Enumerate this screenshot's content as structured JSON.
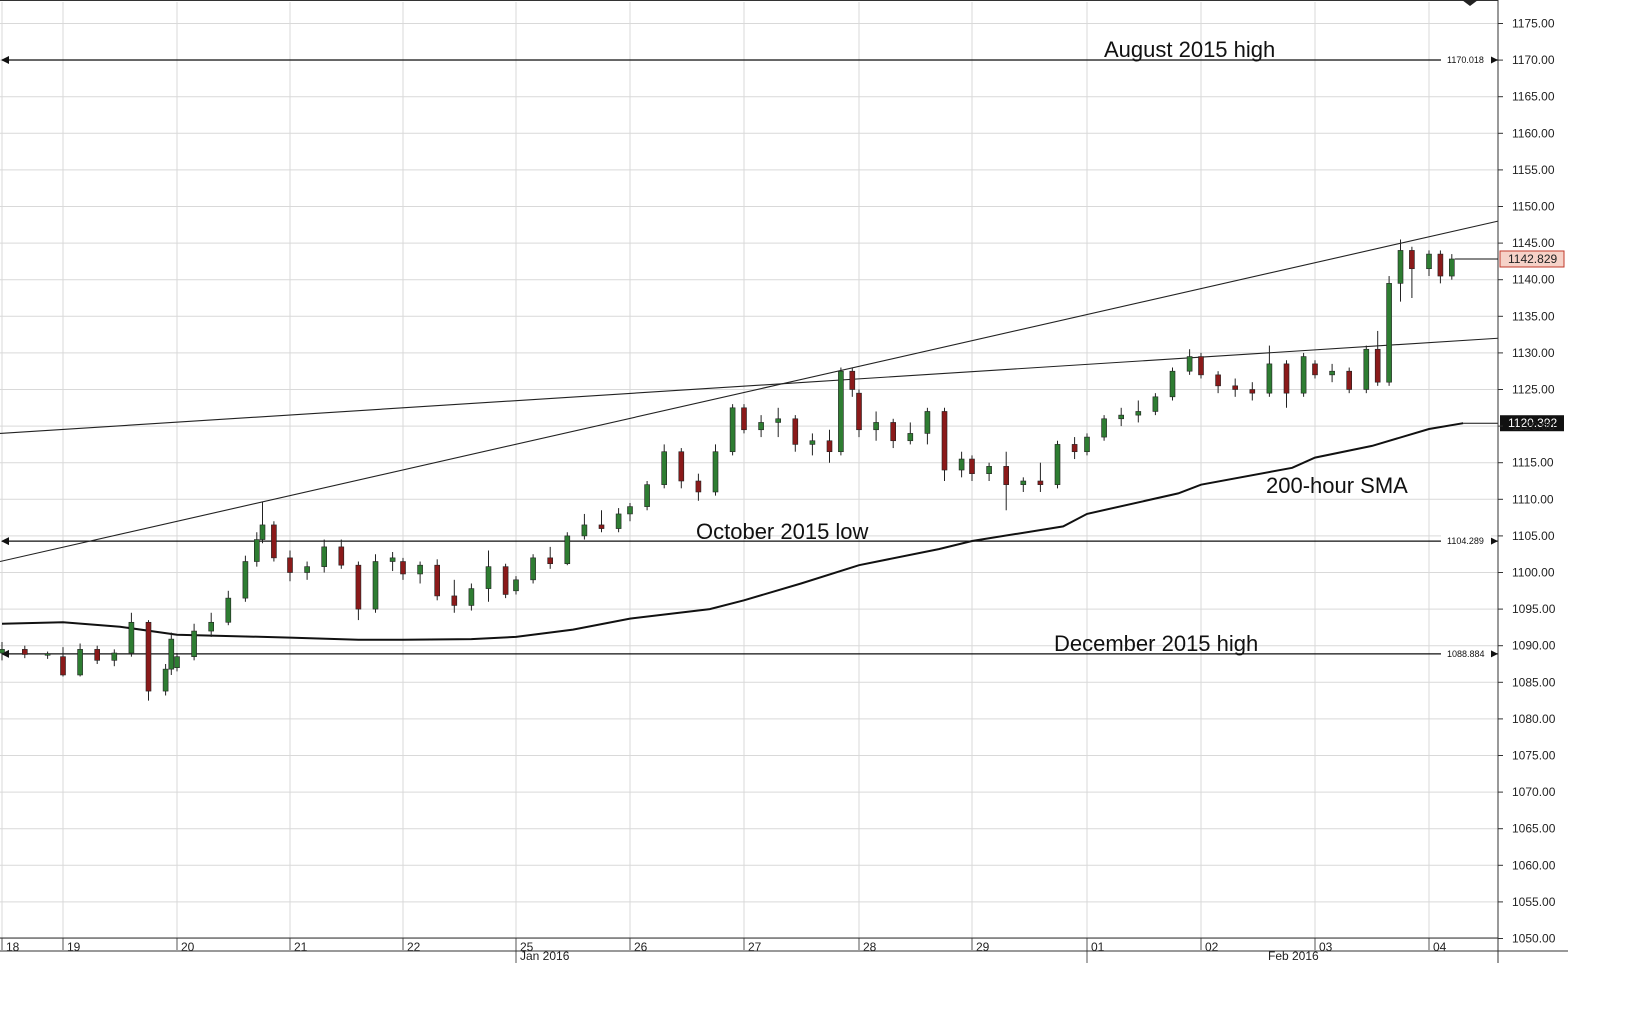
{
  "chart_data": {
    "type": "candlestick",
    "title": "",
    "xlabel": "",
    "ylabel": "",
    "ylim": [
      1050,
      1177.5
    ],
    "y_ticks": [
      1050,
      1055,
      1060,
      1065,
      1070,
      1075,
      1080,
      1085,
      1090,
      1095,
      1100,
      1105,
      1110,
      1115,
      1120,
      1125,
      1130,
      1135,
      1140,
      1145,
      1150,
      1155,
      1160,
      1165,
      1170,
      1175
    ],
    "y_tick_labels": [
      "1050.00",
      "1055.00",
      "1060.00",
      "1065.00",
      "1070.00",
      "1075.00",
      "1080.00",
      "1085.00",
      "1090.00",
      "1095.00",
      "1100.00",
      "1105.00",
      "1110.00",
      "1115.00",
      "1120.00",
      "1125.00",
      "1130.00",
      "1135.00",
      "1140.00",
      "1145.00",
      "1150.00",
      "1155.00",
      "1160.00",
      "1165.00",
      "1170.00",
      "1175.00"
    ],
    "x_day_labels": [
      "18",
      "19",
      "20",
      "21",
      "22",
      "25",
      "26",
      "27",
      "28",
      "29",
      "01",
      "02",
      "03",
      "04"
    ],
    "x_month_labels": [
      "Jan 2016",
      "Feb 2016"
    ],
    "grid": true,
    "horizontal_levels": [
      {
        "label": "August 2015 high",
        "value": 1170.018,
        "value_label": "1170.018"
      },
      {
        "label": "October 2015 low",
        "value": 1104.289,
        "value_label": "1104.289"
      },
      {
        "label": "December 2015 high",
        "value": 1088.884,
        "value_label": "1088.884"
      }
    ],
    "trendlines": [
      {
        "from": [
          "18",
          1101.5
        ],
        "to": [
          "04",
          1148.0
        ]
      },
      {
        "from": [
          "18",
          1119.0
        ],
        "to": [
          "04",
          1132.0
        ]
      }
    ],
    "sma": {
      "label": "200-hour SMA",
      "last_value_label": "1120.392",
      "points": [
        [
          "18",
          1093.0
        ],
        [
          "19",
          1093.2
        ],
        [
          "19.5",
          1092.6
        ],
        [
          "20",
          1091.5
        ],
        [
          "21",
          1091.1
        ],
        [
          "21.6",
          1090.8
        ],
        [
          "22",
          1090.8
        ],
        [
          "22.6",
          1090.9
        ],
        [
          "25",
          1091.2
        ],
        [
          "25.5",
          1092.2
        ],
        [
          "26",
          1093.7
        ],
        [
          "26.7",
          1095.0
        ],
        [
          "27",
          1096.2
        ],
        [
          "27.5",
          1098.5
        ],
        [
          "28",
          1101.0
        ],
        [
          "28.7",
          1103.2
        ],
        [
          "29",
          1104.3
        ],
        [
          "29.8",
          1106.3
        ],
        [
          "01",
          1108.0
        ],
        [
          "01.8",
          1110.8
        ],
        [
          "02",
          1112.0
        ],
        [
          "02.8",
          1114.3
        ],
        [
          "03",
          1115.7
        ],
        [
          "03.5",
          1117.3
        ],
        [
          "04",
          1119.6
        ],
        [
          "04.3",
          1120.392
        ]
      ]
    },
    "last_price_label": "1142.829",
    "last_price": 1142.829,
    "series": [
      {
        "name": "",
        "candles": [
          {
            "x": "18",
            "o": 1089.0,
            "h": 1090.5,
            "l": 1088.0,
            "c": 1089.5
          },
          {
            "x": "18.2",
            "o": 1089.5,
            "h": 1090.0,
            "l": 1088.3,
            "c": 1088.8
          },
          {
            "x": "18.4",
            "o": 1088.8,
            "h": 1089.2,
            "l": 1088.2,
            "c": 1088.9
          },
          {
            "x": "19",
            "o": 1088.5,
            "h": 1089.8,
            "l": 1085.8,
            "c": 1086.0
          },
          {
            "x": "19.15",
            "o": 1086.0,
            "h": 1090.3,
            "l": 1085.8,
            "c": 1089.5
          },
          {
            "x": "19.3",
            "o": 1089.5,
            "h": 1090.0,
            "l": 1087.5,
            "c": 1088.0
          },
          {
            "x": "19.45",
            "o": 1088.0,
            "h": 1089.5,
            "l": 1087.2,
            "c": 1089.0
          },
          {
            "x": "19.6",
            "o": 1089.0,
            "h": 1094.5,
            "l": 1088.5,
            "c": 1093.2
          },
          {
            "x": "19.75",
            "o": 1093.2,
            "h": 1093.5,
            "l": 1082.5,
            "c": 1083.8
          },
          {
            "x": "19.9",
            "o": 1083.8,
            "h": 1087.5,
            "l": 1083.2,
            "c": 1086.8
          },
          {
            "x": "19.95",
            "o": 1086.8,
            "h": 1091.8,
            "l": 1086.0,
            "c": 1090.9
          },
          {
            "x": "20",
            "o": 1087.0,
            "h": 1089.0,
            "l": 1086.5,
            "c": 1088.5
          },
          {
            "x": "20.15",
            "o": 1088.5,
            "h": 1093.0,
            "l": 1088.0,
            "c": 1092.0
          },
          {
            "x": "20.3",
            "o": 1092.0,
            "h": 1094.5,
            "l": 1091.2,
            "c": 1093.2
          },
          {
            "x": "20.45",
            "o": 1093.2,
            "h": 1097.5,
            "l": 1092.8,
            "c": 1096.5
          },
          {
            "x": "20.6",
            "o": 1096.5,
            "h": 1102.3,
            "l": 1096.0,
            "c": 1101.5
          },
          {
            "x": "20.7",
            "o": 1101.5,
            "h": 1105.5,
            "l": 1100.8,
            "c": 1104.5
          },
          {
            "x": "20.75",
            "o": 1104.5,
            "h": 1109.7,
            "l": 1104.0,
            "c": 1106.5
          },
          {
            "x": "20.85",
            "o": 1106.5,
            "h": 1107.0,
            "l": 1101.5,
            "c": 1102.0
          },
          {
            "x": "21",
            "o": 1102.0,
            "h": 1103.0,
            "l": 1098.8,
            "c": 1100.0
          },
          {
            "x": "21.15",
            "o": 1100.0,
            "h": 1101.5,
            "l": 1099.0,
            "c": 1100.8
          },
          {
            "x": "21.3",
            "o": 1100.8,
            "h": 1104.5,
            "l": 1100.0,
            "c": 1103.5
          },
          {
            "x": "21.45",
            "o": 1103.5,
            "h": 1104.5,
            "l": 1100.5,
            "c": 1101.0
          },
          {
            "x": "21.6",
            "o": 1101.0,
            "h": 1101.5,
            "l": 1093.5,
            "c": 1095.0
          },
          {
            "x": "21.75",
            "o": 1095.0,
            "h": 1102.5,
            "l": 1094.5,
            "c": 1101.5
          },
          {
            "x": "21.9",
            "o": 1101.5,
            "h": 1102.8,
            "l": 1100.2,
            "c": 1102.0
          },
          {
            "x": "22",
            "o": 1101.5,
            "h": 1102.0,
            "l": 1099.0,
            "c": 1099.8
          },
          {
            "x": "22.15",
            "o": 1099.8,
            "h": 1101.5,
            "l": 1098.5,
            "c": 1101.0
          },
          {
            "x": "22.3",
            "o": 1101.0,
            "h": 1101.8,
            "l": 1096.2,
            "c": 1096.8
          },
          {
            "x": "22.45",
            "o": 1096.8,
            "h": 1099.0,
            "l": 1094.5,
            "c": 1095.5
          },
          {
            "x": "22.6",
            "o": 1095.5,
            "h": 1098.5,
            "l": 1094.8,
            "c": 1097.8
          },
          {
            "x": "22.75",
            "o": 1097.8,
            "h": 1103.0,
            "l": 1096.0,
            "c": 1100.8
          },
          {
            "x": "22.9",
            "o": 1100.8,
            "h": 1101.2,
            "l": 1096.5,
            "c": 1097.0
          },
          {
            "x": "25",
            "o": 1097.5,
            "h": 1099.5,
            "l": 1097.0,
            "c": 1099.0
          },
          {
            "x": "25.15",
            "o": 1099.0,
            "h": 1102.5,
            "l": 1098.5,
            "c": 1102.0
          },
          {
            "x": "25.3",
            "o": 1102.0,
            "h": 1103.5,
            "l": 1100.5,
            "c": 1101.2
          },
          {
            "x": "25.45",
            "o": 1101.2,
            "h": 1105.5,
            "l": 1101.0,
            "c": 1105.0
          },
          {
            "x": "25.6",
            "o": 1105.0,
            "h": 1108.0,
            "l": 1104.5,
            "c": 1106.5
          },
          {
            "x": "25.75",
            "o": 1106.5,
            "h": 1108.5,
            "l": 1105.5,
            "c": 1106.0
          },
          {
            "x": "25.9",
            "o": 1106.0,
            "h": 1108.8,
            "l": 1105.5,
            "c": 1108.0
          },
          {
            "x": "26",
            "o": 1108.0,
            "h": 1109.5,
            "l": 1107.0,
            "c": 1109.0
          },
          {
            "x": "26.15",
            "o": 1109.0,
            "h": 1112.5,
            "l": 1108.5,
            "c": 1112.0
          },
          {
            "x": "26.3",
            "o": 1112.0,
            "h": 1117.5,
            "l": 1111.5,
            "c": 1116.5
          },
          {
            "x": "26.45",
            "o": 1116.5,
            "h": 1117.0,
            "l": 1111.5,
            "c": 1112.5
          },
          {
            "x": "26.6",
            "o": 1112.5,
            "h": 1113.5,
            "l": 1109.8,
            "c": 1111.0
          },
          {
            "x": "26.75",
            "o": 1111.0,
            "h": 1117.5,
            "l": 1110.5,
            "c": 1116.5
          },
          {
            "x": "26.9",
            "o": 1116.5,
            "h": 1123.0,
            "l": 1116.0,
            "c": 1122.5
          },
          {
            "x": "27",
            "o": 1122.5,
            "h": 1123.0,
            "l": 1119.0,
            "c": 1119.5
          },
          {
            "x": "27.15",
            "o": 1119.5,
            "h": 1121.5,
            "l": 1118.5,
            "c": 1120.5
          },
          {
            "x": "27.3",
            "o": 1120.5,
            "h": 1122.5,
            "l": 1118.5,
            "c": 1121.0
          },
          {
            "x": "27.45",
            "o": 1121.0,
            "h": 1121.5,
            "l": 1116.5,
            "c": 1117.5
          },
          {
            "x": "27.6",
            "o": 1117.5,
            "h": 1119.0,
            "l": 1116.0,
            "c": 1118.0
          },
          {
            "x": "27.75",
            "o": 1118.0,
            "h": 1119.5,
            "l": 1115.0,
            "c": 1116.5
          },
          {
            "x": "27.85",
            "o": 1116.5,
            "h": 1128.0,
            "l": 1116.0,
            "c": 1127.5
          },
          {
            "x": "27.95",
            "o": 1127.5,
            "h": 1128.0,
            "l": 1124.0,
            "c": 1125.0
          },
          {
            "x": "28",
            "o": 1124.5,
            "h": 1125.0,
            "l": 1118.5,
            "c": 1119.5
          },
          {
            "x": "28.15",
            "o": 1119.5,
            "h": 1122.0,
            "l": 1118.0,
            "c": 1120.5
          },
          {
            "x": "28.3",
            "o": 1120.5,
            "h": 1121.0,
            "l": 1117.0,
            "c": 1118.0
          },
          {
            "x": "28.45",
            "o": 1118.0,
            "h": 1120.5,
            "l": 1117.5,
            "c": 1119.0
          },
          {
            "x": "28.6",
            "o": 1119.0,
            "h": 1122.5,
            "l": 1117.5,
            "c": 1122.0
          },
          {
            "x": "28.75",
            "o": 1122.0,
            "h": 1122.5,
            "l": 1112.5,
            "c": 1114.0
          },
          {
            "x": "28.9",
            "o": 1114.0,
            "h": 1116.5,
            "l": 1113.0,
            "c": 1115.5
          },
          {
            "x": "29",
            "o": 1115.5,
            "h": 1116.0,
            "l": 1112.5,
            "c": 1113.5
          },
          {
            "x": "29.15",
            "o": 1113.5,
            "h": 1115.0,
            "l": 1112.5,
            "c": 1114.5
          },
          {
            "x": "29.3",
            "o": 1114.5,
            "h": 1116.5,
            "l": 1108.5,
            "c": 1112.0
          },
          {
            "x": "29.45",
            "o": 1112.0,
            "h": 1113.0,
            "l": 1111.0,
            "c": 1112.5
          },
          {
            "x": "29.6",
            "o": 1112.5,
            "h": 1115.0,
            "l": 1111.0,
            "c": 1112.0
          },
          {
            "x": "29.75",
            "o": 1112.0,
            "h": 1118.0,
            "l": 1111.5,
            "c": 1117.5
          },
          {
            "x": "29.9",
            "o": 1117.5,
            "h": 1118.5,
            "l": 1115.5,
            "c": 1116.5
          },
          {
            "x": "01",
            "o": 1116.5,
            "h": 1119.0,
            "l": 1116.0,
            "c": 1118.5
          },
          {
            "x": "01.15",
            "o": 1118.5,
            "h": 1121.5,
            "l": 1118.0,
            "c": 1121.0
          },
          {
            "x": "01.3",
            "o": 1121.0,
            "h": 1122.5,
            "l": 1120.0,
            "c": 1121.5
          },
          {
            "x": "01.45",
            "o": 1121.5,
            "h": 1123.5,
            "l": 1120.5,
            "c": 1122.0
          },
          {
            "x": "01.6",
            "o": 1122.0,
            "h": 1124.5,
            "l": 1121.5,
            "c": 1124.0
          },
          {
            "x": "01.75",
            "o": 1124.0,
            "h": 1128.0,
            "l": 1123.5,
            "c": 1127.5
          },
          {
            "x": "01.9",
            "o": 1127.5,
            "h": 1130.5,
            "l": 1127.0,
            "c": 1129.5
          },
          {
            "x": "02",
            "o": 1129.5,
            "h": 1130.0,
            "l": 1126.5,
            "c": 1127.0
          },
          {
            "x": "02.15",
            "o": 1127.0,
            "h": 1127.5,
            "l": 1124.5,
            "c": 1125.5
          },
          {
            "x": "02.3",
            "o": 1125.5,
            "h": 1126.5,
            "l": 1124.0,
            "c": 1125.0
          },
          {
            "x": "02.45",
            "o": 1125.0,
            "h": 1126.0,
            "l": 1123.5,
            "c": 1124.5
          },
          {
            "x": "02.6",
            "o": 1124.5,
            "h": 1131.0,
            "l": 1124.0,
            "c": 1128.5
          },
          {
            "x": "02.75",
            "o": 1128.5,
            "h": 1129.0,
            "l": 1122.5,
            "c": 1124.5
          },
          {
            "x": "02.9",
            "o": 1124.5,
            "h": 1130.0,
            "l": 1124.0,
            "c": 1129.5
          },
          {
            "x": "03",
            "o": 1128.5,
            "h": 1129.0,
            "l": 1126.5,
            "c": 1127.0
          },
          {
            "x": "03.15",
            "o": 1127.0,
            "h": 1128.5,
            "l": 1126.0,
            "c": 1127.5
          },
          {
            "x": "03.3",
            "o": 1127.5,
            "h": 1128.0,
            "l": 1124.5,
            "c": 1125.0
          },
          {
            "x": "03.45",
            "o": 1125.0,
            "h": 1131.0,
            "l": 1124.5,
            "c": 1130.5
          },
          {
            "x": "03.55",
            "o": 1130.5,
            "h": 1133.0,
            "l": 1125.5,
            "c": 1126.0
          },
          {
            "x": "03.65",
            "o": 1126.0,
            "h": 1140.5,
            "l": 1125.5,
            "c": 1139.5
          },
          {
            "x": "03.75",
            "o": 1139.5,
            "h": 1145.5,
            "l": 1137.0,
            "c": 1144.0
          },
          {
            "x": "03.85",
            "o": 1144.0,
            "h": 1144.5,
            "l": 1137.5,
            "c": 1141.5
          },
          {
            "x": "04",
            "o": 1141.5,
            "h": 1144.0,
            "l": 1140.5,
            "c": 1143.5
          },
          {
            "x": "04.1",
            "o": 1143.5,
            "h": 1144.0,
            "l": 1139.5,
            "c": 1140.5
          },
          {
            "x": "04.2",
            "o": 1140.5,
            "h": 1143.5,
            "l": 1140.0,
            "c": 1142.829
          }
        ]
      }
    ]
  }
}
